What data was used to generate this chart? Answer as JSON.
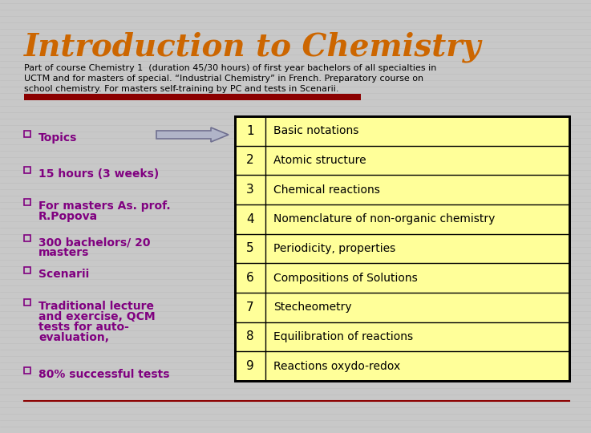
{
  "title": "Introduction to Chemistry",
  "title_color": "#CC6600",
  "subtitle_lines": [
    "Part of course Chemistry 1  (duration 45/30 hours) of first year bachelors of all specialties in",
    "UCTM and for masters of special. “Industrial Chemistry” in French. Preparatory course on",
    "school chemistry. For masters self-training by PC and tests in Scenarii."
  ],
  "subtitle_color": "#000000",
  "bg_color": "#c8c8c8",
  "stripe_color": "#bbbbbb",
  "slide_inner_bg": "#d8d8d8",
  "bullet_color": "#800080",
  "bullet_items": [
    [
      "Topics"
    ],
    [
      "15 hours (3 weeks)"
    ],
    [
      "For masters As. prof.",
      "R.Popova"
    ],
    [
      "300 bachelors/ 20",
      "masters"
    ],
    [
      "Scenarii"
    ],
    [
      "Traditional lecture",
      "and exercise, QCM",
      "tests for auto-",
      "evaluation,"
    ],
    [
      "80% successful tests"
    ]
  ],
  "table_numbers": [
    1,
    2,
    3,
    4,
    5,
    6,
    7,
    8,
    9
  ],
  "table_topics": [
    "Basic notations",
    "Atomic structure",
    "Chemical reactions",
    "Nomenclature of non-organic chemistry",
    "Periodicity, properties",
    "Compositions of Solutions",
    "Stecheometry",
    "Equilibration of reactions",
    "Reactions oxydo-redox"
  ],
  "table_bg": "#ffff99",
  "table_border": "#000000",
  "arrow_fc": "#b0b4c8",
  "arrow_ec": "#707090",
  "red_bar_color": "#8B0000",
  "bottom_line_color": "#8B0000"
}
